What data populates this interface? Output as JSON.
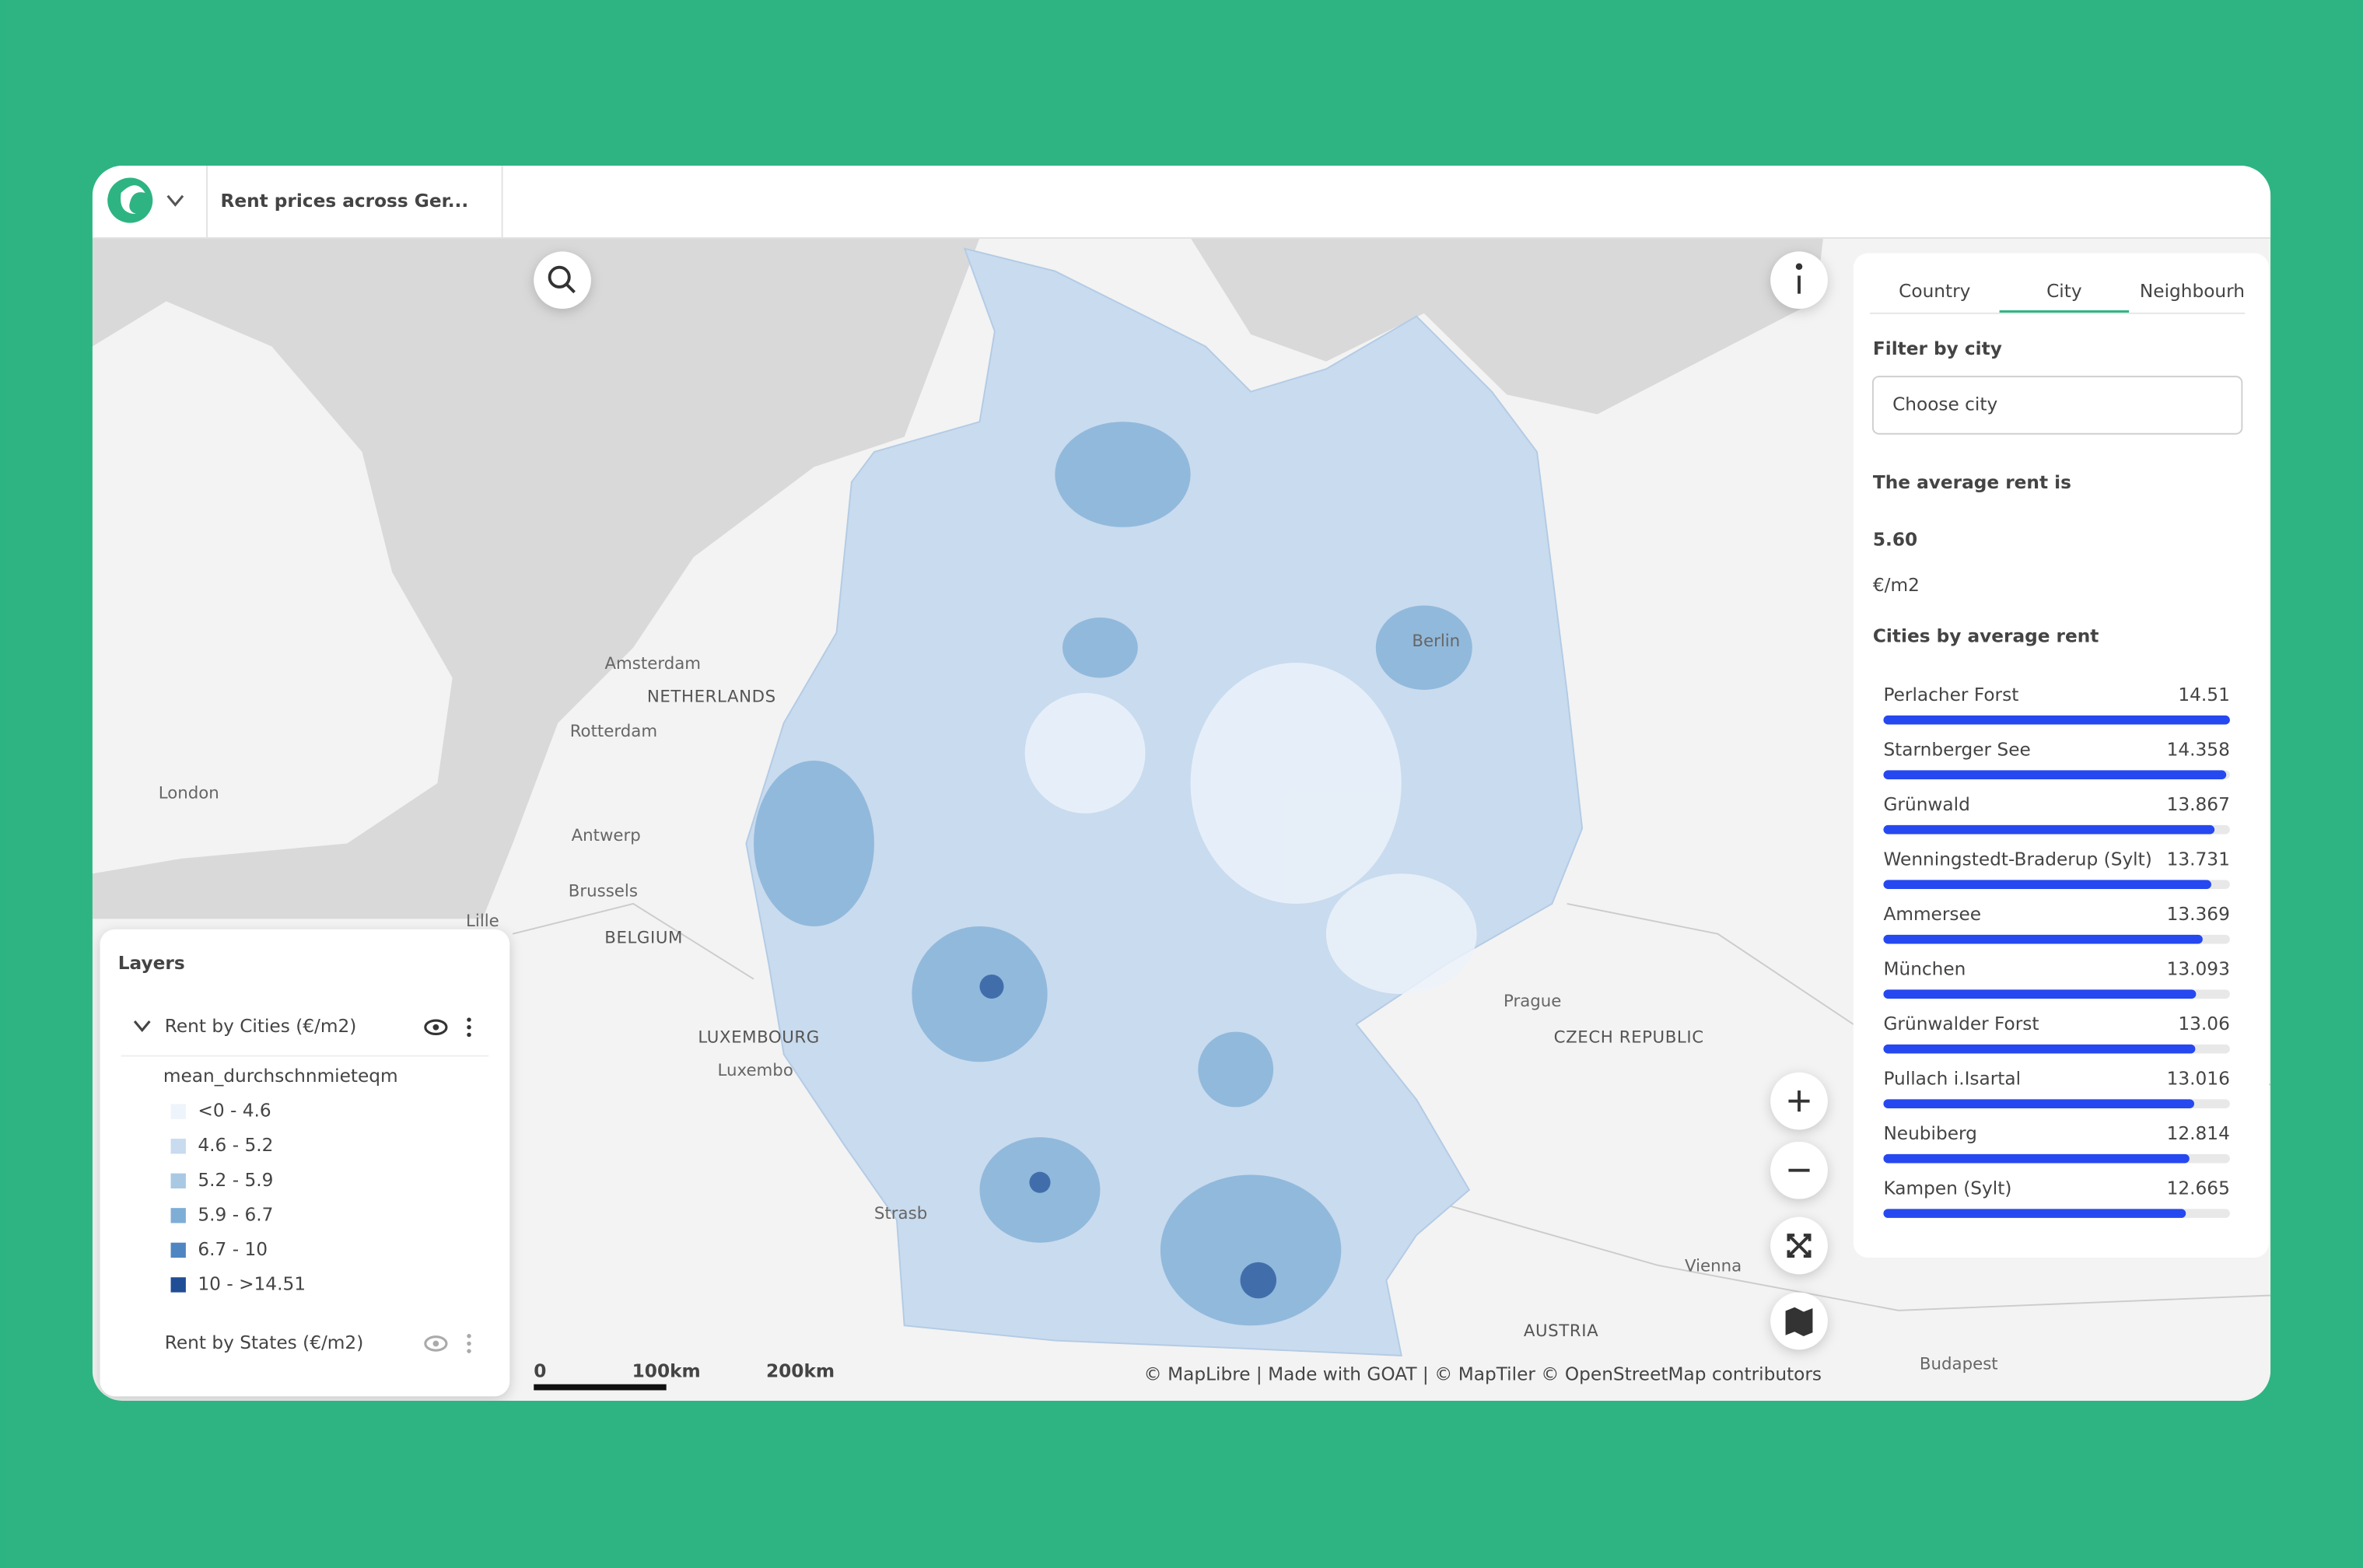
{
  "header": {
    "title": "Rent prices across Ger..."
  },
  "map": {
    "labels": [
      "Amsterdam",
      "NETHERLANDS",
      "Rotterdam",
      "London",
      "Antwerp",
      "Brussels",
      "BELGIUM",
      "Lille",
      "LUXEMBOURG",
      "Luxembo",
      "Strasb",
      "Prague",
      "CZECH REPUBLIC",
      "Vienna",
      "AUSTRIA",
      "Budapest",
      "Berlin"
    ],
    "scale": [
      "0",
      "100km",
      "200km"
    ],
    "attribution": "© MapLibre | Made with GOAT | © MapTiler © OpenStreetMap contributors"
  },
  "layers_panel": {
    "title": "Layers",
    "layers": [
      {
        "name": "Rent by Cities (€/m2)",
        "field": "mean_durchschnmieteqm",
        "legend": [
          "<0 - 4.6",
          "4.6 - 5.2",
          "5.2 - 5.9",
          "5.9 - 6.7",
          "6.7 - 10",
          "10 - >14.51"
        ],
        "colors": [
          "#eef4fb",
          "#c9dbee",
          "#a9c8e3",
          "#7eaed6",
          "#4f86c2",
          "#1f4e96"
        ]
      },
      {
        "name": "Rent by States (€/m2)"
      }
    ]
  },
  "side_panel": {
    "tabs": [
      "Country",
      "City",
      "Neighbourh"
    ],
    "active_tab": 1,
    "filter_label": "Filter by city",
    "filter_placeholder": "Choose city",
    "average_label": "The average rent is",
    "average_value": "5.60",
    "average_unit": "€/m2",
    "list_title": "Cities by average rent",
    "bar_color": "#2648f0",
    "cities": [
      {
        "name": "Perlacher Forst",
        "value": 14.51
      },
      {
        "name": "Starnberger See",
        "value": 14.358
      },
      {
        "name": "Grünwald",
        "value": 13.867
      },
      {
        "name": "Wenningstedt-Braderup (Sylt)",
        "value": 13.731
      },
      {
        "name": "Ammersee",
        "value": 13.369
      },
      {
        "name": "München",
        "value": 13.093
      },
      {
        "name": "Grünwalder Forst",
        "value": 13.06
      },
      {
        "name": "Pullach i.Isartal",
        "value": 13.016
      },
      {
        "name": "Neubiberg",
        "value": 12.814
      },
      {
        "name": "Kampen (Sylt)",
        "value": 12.665
      }
    ]
  }
}
